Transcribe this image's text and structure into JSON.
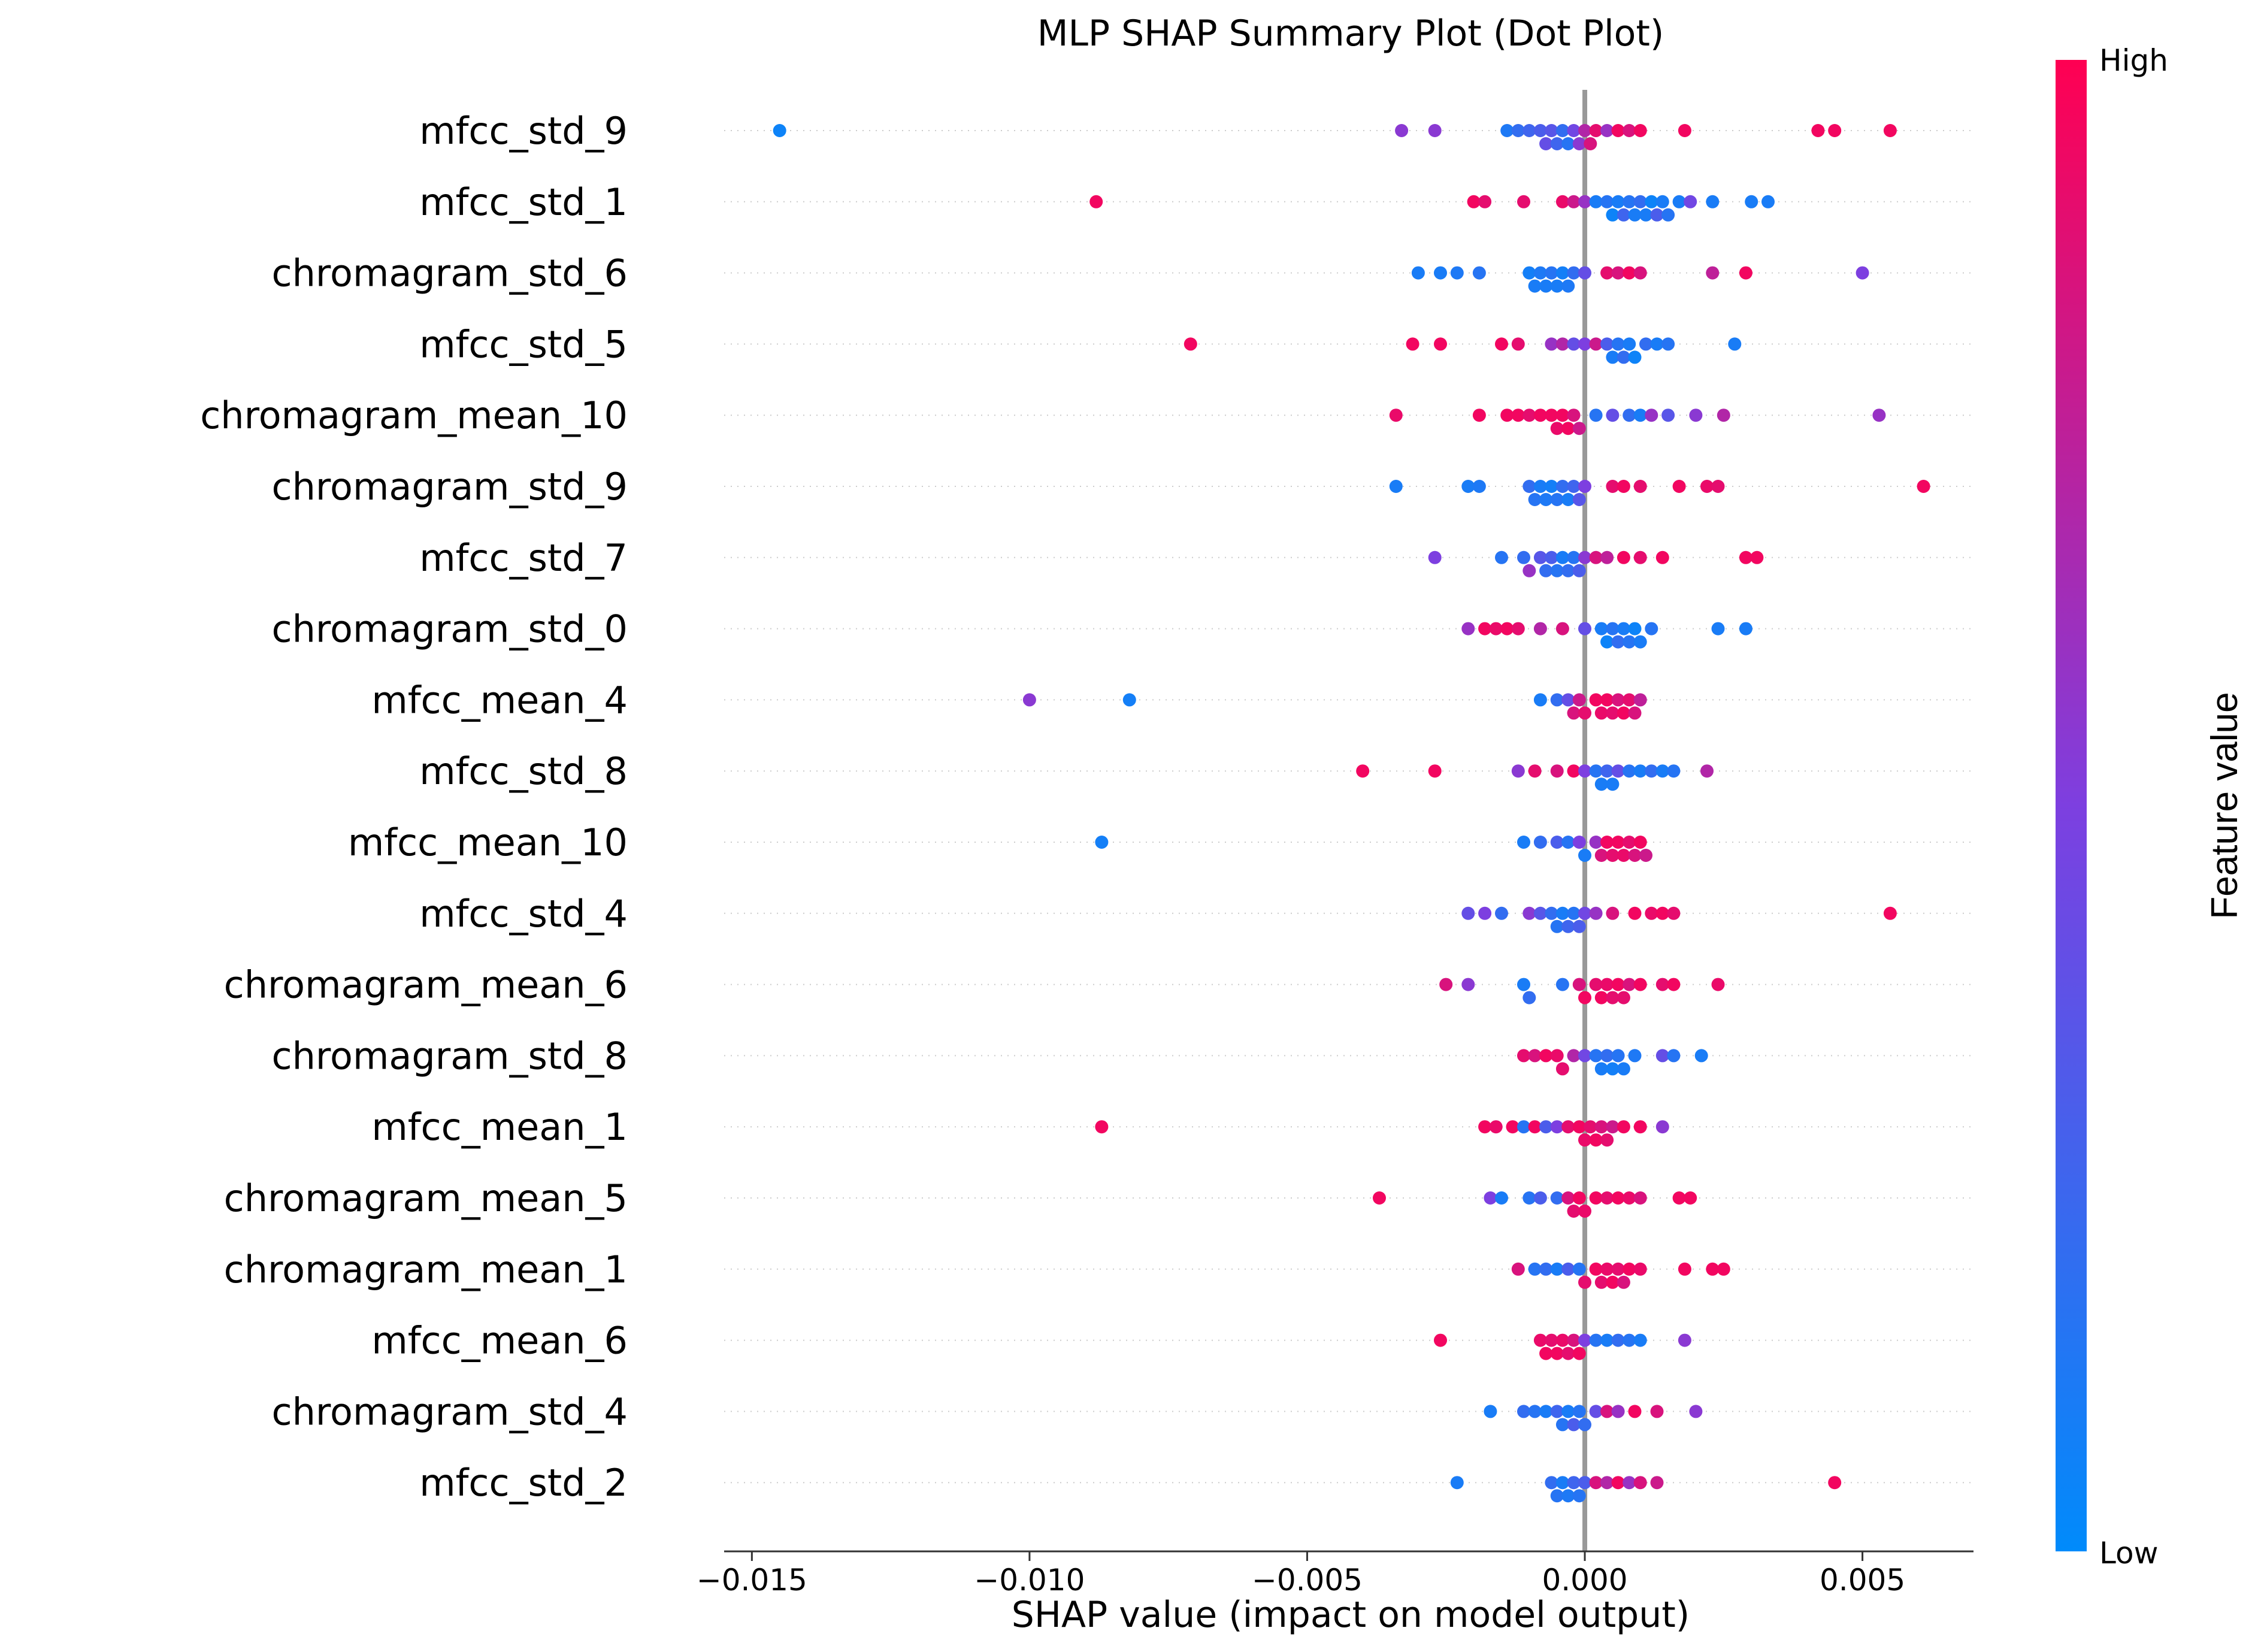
{
  "chart_data": {
    "type": "scatter",
    "title": "MLP SHAP Summary Plot (Dot Plot)",
    "xlabel": "SHAP value (impact on model output)",
    "ylabel": "",
    "xlim": [
      -0.0155,
      0.007
    ],
    "xticks": [
      -0.015,
      -0.01,
      -0.005,
      0.0,
      0.005
    ],
    "xtick_labels": [
      "−0.015",
      "−0.010",
      "−0.005",
      "0.000",
      "0.005"
    ],
    "colorbar": {
      "title": "Feature value",
      "high_label": "High",
      "low_label": "Low",
      "low_color": "#008bfb",
      "high_color": "#ff0052"
    },
    "features": [
      {
        "name": "mfcc_std_9",
        "shap": [
          -0.0145,
          -0.0033,
          -0.0027,
          -0.0014,
          -0.0012,
          -0.001,
          -0.0008,
          -0.0007,
          -0.0006,
          -0.0005,
          -0.0004,
          -0.0003,
          -0.0002,
          -0.0001,
          0.0,
          0.0001,
          0.0002,
          0.0004,
          0.0006,
          0.0008,
          0.001,
          0.0018,
          0.0042,
          0.0045,
          0.0055
        ],
        "fv": [
          0.05,
          0.55,
          0.55,
          0.12,
          0.2,
          0.25,
          0.3,
          0.4,
          0.35,
          0.25,
          0.2,
          0.15,
          0.45,
          0.55,
          0.7,
          0.85,
          0.9,
          0.6,
          0.95,
          0.85,
          0.95,
          0.95,
          0.95,
          0.95,
          0.95
        ]
      },
      {
        "name": "mfcc_std_1",
        "shap": [
          -0.0088,
          -0.002,
          -0.0018,
          -0.0011,
          -0.0004,
          -0.0002,
          0.0,
          0.0002,
          0.0004,
          0.0005,
          0.0006,
          0.0007,
          0.0008,
          0.0009,
          0.001,
          0.0011,
          0.0012,
          0.0013,
          0.0014,
          0.0015,
          0.0017,
          0.0019,
          0.0023,
          0.003,
          0.0033
        ],
        "fv": [
          0.95,
          0.95,
          0.9,
          0.9,
          0.92,
          0.8,
          0.6,
          0.1,
          0.15,
          0.05,
          0.1,
          0.25,
          0.15,
          0.1,
          0.2,
          0.1,
          0.05,
          0.3,
          0.1,
          0.15,
          0.1,
          0.45,
          0.1,
          0.1,
          0.1
        ]
      },
      {
        "name": "chromagram_std_6",
        "shap": [
          -0.003,
          -0.0026,
          -0.0023,
          -0.0019,
          -0.001,
          -0.0009,
          -0.0008,
          -0.0007,
          -0.0006,
          -0.0005,
          -0.0004,
          -0.0003,
          -0.0002,
          0.0,
          0.0004,
          0.0006,
          0.0008,
          0.001,
          0.0023,
          0.0029,
          0.005
        ],
        "fv": [
          0.1,
          0.1,
          0.12,
          0.15,
          0.08,
          0.1,
          0.12,
          0.1,
          0.15,
          0.1,
          0.08,
          0.12,
          0.2,
          0.4,
          0.9,
          0.85,
          0.95,
          0.85,
          0.75,
          0.95,
          0.5
        ]
      },
      {
        "name": "mfcc_std_5",
        "shap": [
          -0.0071,
          -0.0031,
          -0.0026,
          -0.0015,
          -0.0012,
          -0.0006,
          -0.0004,
          -0.0002,
          0.0,
          0.0002,
          0.0004,
          0.0005,
          0.0006,
          0.0007,
          0.0008,
          0.0009,
          0.0011,
          0.0013,
          0.0015,
          0.0027
        ],
        "fv": [
          0.95,
          0.95,
          0.95,
          0.95,
          0.9,
          0.6,
          0.7,
          0.4,
          0.5,
          0.8,
          0.3,
          0.1,
          0.15,
          0.2,
          0.1,
          0.05,
          0.2,
          0.1,
          0.15,
          0.1
        ]
      },
      {
        "name": "chromagram_mean_10",
        "shap": [
          -0.0034,
          -0.0019,
          -0.0014,
          -0.0012,
          -0.001,
          -0.0008,
          -0.0006,
          -0.0005,
          -0.0004,
          -0.0003,
          -0.0002,
          -0.0001,
          0.0002,
          0.0005,
          0.0008,
          0.001,
          0.0012,
          0.0015,
          0.002,
          0.0025,
          0.0053
        ],
        "fv": [
          0.92,
          0.95,
          0.95,
          0.95,
          0.9,
          0.95,
          0.95,
          0.92,
          0.95,
          0.95,
          0.85,
          0.8,
          0.15,
          0.4,
          0.2,
          0.1,
          0.6,
          0.35,
          0.55,
          0.7,
          0.6
        ]
      },
      {
        "name": "chromagram_std_9",
        "shap": [
          -0.0034,
          -0.0021,
          -0.0019,
          -0.001,
          -0.0009,
          -0.0008,
          -0.0007,
          -0.0006,
          -0.0005,
          -0.0004,
          -0.0003,
          -0.0002,
          -0.0001,
          0.0,
          0.0005,
          0.0007,
          0.001,
          0.0017,
          0.0022,
          0.0024,
          0.0061
        ],
        "fv": [
          0.1,
          0.1,
          0.12,
          0.2,
          0.15,
          0.1,
          0.12,
          0.08,
          0.15,
          0.2,
          0.1,
          0.25,
          0.35,
          0.5,
          0.9,
          0.95,
          0.9,
          0.95,
          0.92,
          0.9,
          0.95
        ]
      },
      {
        "name": "mfcc_std_7",
        "shap": [
          -0.0027,
          -0.0015,
          -0.0011,
          -0.001,
          -0.0008,
          -0.0007,
          -0.0006,
          -0.0005,
          -0.0004,
          -0.0003,
          -0.0002,
          -0.0001,
          0.0,
          0.0002,
          0.0004,
          0.0007,
          0.001,
          0.0014,
          0.0029,
          0.0031
        ],
        "fv": [
          0.5,
          0.15,
          0.2,
          0.6,
          0.35,
          0.2,
          0.3,
          0.15,
          0.1,
          0.2,
          0.15,
          0.3,
          0.55,
          0.85,
          0.75,
          0.95,
          0.9,
          0.95,
          0.95,
          0.95
        ]
      },
      {
        "name": "chromagram_std_0",
        "shap": [
          -0.0021,
          -0.0018,
          -0.0016,
          -0.0014,
          -0.0012,
          -0.0008,
          -0.0004,
          0.0,
          0.0003,
          0.0004,
          0.0005,
          0.0006,
          0.0007,
          0.0008,
          0.0009,
          0.001,
          0.0012,
          0.0024,
          0.0029
        ],
        "fv": [
          0.6,
          0.95,
          0.92,
          0.95,
          0.9,
          0.7,
          0.85,
          0.4,
          0.1,
          0.05,
          0.15,
          0.2,
          0.1,
          0.15,
          0.05,
          0.1,
          0.15,
          0.1,
          0.1
        ]
      },
      {
        "name": "mfcc_mean_4",
        "shap": [
          -0.01,
          -0.0082,
          -0.0008,
          -0.0005,
          -0.0003,
          -0.0002,
          -0.0001,
          0.0,
          0.0002,
          0.0003,
          0.0004,
          0.0005,
          0.0006,
          0.0007,
          0.0008,
          0.0009,
          0.001
        ],
        "fv": [
          0.55,
          0.08,
          0.1,
          0.2,
          0.4,
          0.85,
          0.8,
          0.9,
          0.95,
          0.92,
          0.95,
          0.9,
          0.85,
          0.95,
          0.9,
          0.85,
          0.75
        ]
      },
      {
        "name": "mfcc_std_8",
        "shap": [
          -0.004,
          -0.0027,
          -0.0012,
          -0.0009,
          -0.0005,
          -0.0002,
          0.0,
          0.0002,
          0.0003,
          0.0004,
          0.0005,
          0.0006,
          0.0008,
          0.001,
          0.0012,
          0.0014,
          0.0016,
          0.0022
        ],
        "fv": [
          0.95,
          0.95,
          0.55,
          0.9,
          0.85,
          0.95,
          0.5,
          0.15,
          0.1,
          0.25,
          0.1,
          0.4,
          0.15,
          0.1,
          0.2,
          0.1,
          0.15,
          0.7
        ]
      },
      {
        "name": "mfcc_mean_10",
        "shap": [
          -0.0087,
          -0.0011,
          -0.0008,
          -0.0005,
          -0.0003,
          -0.0001,
          0.0,
          0.0002,
          0.0003,
          0.0004,
          0.0005,
          0.0006,
          0.0007,
          0.0008,
          0.0009,
          0.001,
          0.0011
        ],
        "fv": [
          0.08,
          0.1,
          0.2,
          0.3,
          0.15,
          0.5,
          0.1,
          0.6,
          0.85,
          0.95,
          0.9,
          0.95,
          0.92,
          0.9,
          0.85,
          0.95,
          0.8
        ]
      },
      {
        "name": "mfcc_std_4",
        "shap": [
          -0.0021,
          -0.0018,
          -0.0015,
          -0.001,
          -0.0008,
          -0.0006,
          -0.0005,
          -0.0004,
          -0.0003,
          -0.0002,
          -0.0001,
          0.0,
          0.0002,
          0.0005,
          0.0009,
          0.0012,
          0.0014,
          0.0016,
          0.0055
        ],
        "fv": [
          0.4,
          0.5,
          0.2,
          0.55,
          0.35,
          0.2,
          0.15,
          0.1,
          0.25,
          0.15,
          0.3,
          0.45,
          0.6,
          0.85,
          0.95,
          0.92,
          0.95,
          0.9,
          0.95
        ]
      },
      {
        "name": "chromagram_mean_6",
        "shap": [
          -0.0025,
          -0.0021,
          -0.0011,
          -0.001,
          -0.0004,
          -0.0001,
          0.0,
          0.0002,
          0.0003,
          0.0004,
          0.0005,
          0.0006,
          0.0007,
          0.0008,
          0.001,
          0.0014,
          0.0016,
          0.0024
        ],
        "fv": [
          0.85,
          0.55,
          0.1,
          0.2,
          0.15,
          0.85,
          0.95,
          0.9,
          0.95,
          0.92,
          0.9,
          0.95,
          0.9,
          0.85,
          0.95,
          0.9,
          0.95,
          0.92
        ]
      },
      {
        "name": "chromagram_std_8",
        "shap": [
          -0.0011,
          -0.0009,
          -0.0007,
          -0.0005,
          -0.0004,
          -0.0002,
          0.0,
          0.0002,
          0.0003,
          0.0004,
          0.0005,
          0.0006,
          0.0007,
          0.0009,
          0.0014,
          0.0016,
          0.0021
        ],
        "fv": [
          0.9,
          0.85,
          0.95,
          0.92,
          0.9,
          0.7,
          0.45,
          0.15,
          0.1,
          0.2,
          0.08,
          0.15,
          0.1,
          0.12,
          0.4,
          0.15,
          0.1
        ]
      },
      {
        "name": "mfcc_mean_1",
        "shap": [
          -0.0087,
          -0.0018,
          -0.0016,
          -0.0013,
          -0.0011,
          -0.0009,
          -0.0007,
          -0.0005,
          -0.0003,
          -0.0001,
          0.0,
          0.0001,
          0.0002,
          0.0003,
          0.0004,
          0.0005,
          0.0007,
          0.001,
          0.0014
        ],
        "fv": [
          0.95,
          0.95,
          0.92,
          0.95,
          0.15,
          0.95,
          0.3,
          0.5,
          0.9,
          0.95,
          0.92,
          0.9,
          0.95,
          0.85,
          0.9,
          0.8,
          0.95,
          0.95,
          0.55
        ]
      },
      {
        "name": "chromagram_mean_5",
        "shap": [
          -0.0037,
          -0.0017,
          -0.0015,
          -0.001,
          -0.0008,
          -0.0005,
          -0.0003,
          -0.0002,
          -0.0001,
          0.0,
          0.0002,
          0.0004,
          0.0006,
          0.0008,
          0.001,
          0.0017,
          0.0019
        ],
        "fv": [
          0.95,
          0.5,
          0.1,
          0.15,
          0.3,
          0.2,
          0.85,
          0.9,
          0.95,
          0.92,
          0.95,
          0.9,
          0.95,
          0.92,
          0.85,
          0.95,
          0.95
        ]
      },
      {
        "name": "chromagram_mean_1",
        "shap": [
          -0.0012,
          -0.0009,
          -0.0007,
          -0.0005,
          -0.0003,
          -0.0001,
          0.0,
          0.0002,
          0.0003,
          0.0004,
          0.0005,
          0.0006,
          0.0007,
          0.0008,
          0.001,
          0.0018,
          0.0023,
          0.0025
        ],
        "fv": [
          0.85,
          0.15,
          0.2,
          0.1,
          0.3,
          0.15,
          0.9,
          0.95,
          0.9,
          0.92,
          0.95,
          0.9,
          0.85,
          0.95,
          0.92,
          0.95,
          0.95,
          0.95
        ]
      },
      {
        "name": "mfcc_mean_6",
        "shap": [
          -0.0026,
          -0.0008,
          -0.0007,
          -0.0006,
          -0.0005,
          -0.0004,
          -0.0003,
          -0.0002,
          -0.0001,
          0.0,
          0.0002,
          0.0004,
          0.0006,
          0.0008,
          0.001,
          0.0018
        ],
        "fv": [
          0.95,
          0.92,
          0.95,
          0.9,
          0.95,
          0.92,
          0.9,
          0.85,
          0.95,
          0.5,
          0.15,
          0.1,
          0.2,
          0.15,
          0.1,
          0.55
        ]
      },
      {
        "name": "chromagram_std_4",
        "shap": [
          -0.0017,
          -0.0011,
          -0.0009,
          -0.0007,
          -0.0005,
          -0.0004,
          -0.0003,
          -0.0002,
          -0.0001,
          0.0,
          0.0002,
          0.0004,
          0.0006,
          0.0009,
          0.0013,
          0.002
        ],
        "fv": [
          0.1,
          0.2,
          0.15,
          0.1,
          0.25,
          0.15,
          0.1,
          0.3,
          0.15,
          0.2,
          0.4,
          0.85,
          0.6,
          0.95,
          0.85,
          0.55
        ]
      },
      {
        "name": "mfcc_std_2",
        "shap": [
          -0.0023,
          -0.0006,
          -0.0005,
          -0.0004,
          -0.0003,
          -0.0002,
          -0.0001,
          0.0,
          0.0002,
          0.0004,
          0.0006,
          0.0008,
          0.001,
          0.0013,
          0.0045
        ],
        "fv": [
          0.1,
          0.2,
          0.15,
          0.1,
          0.12,
          0.25,
          0.15,
          0.3,
          0.85,
          0.7,
          0.95,
          0.6,
          0.85,
          0.8,
          0.95
        ]
      }
    ]
  }
}
